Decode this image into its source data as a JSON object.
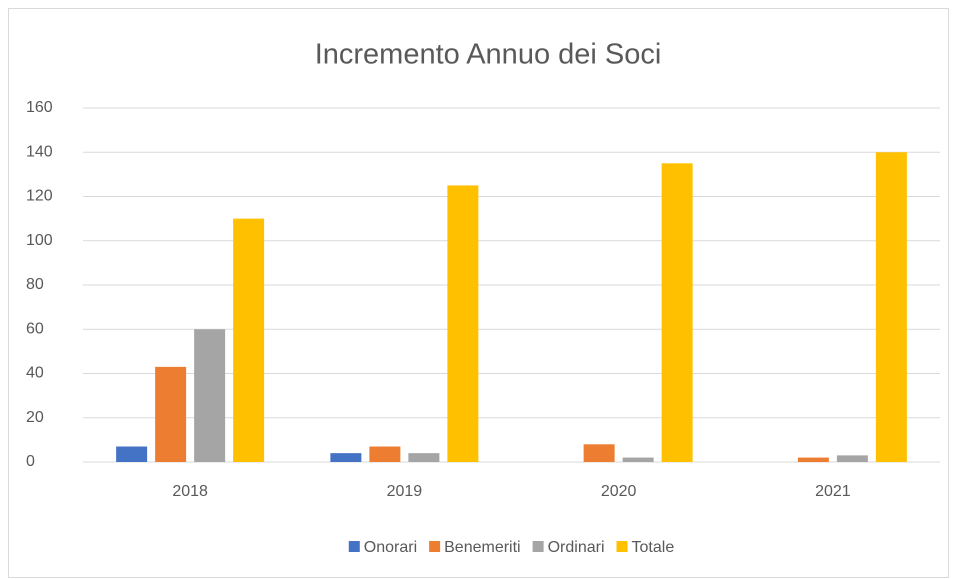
{
  "chart_data": {
    "type": "bar",
    "title": "Incremento Annuo dei Soci",
    "categories": [
      "2018",
      "2019",
      "2020",
      "2021"
    ],
    "series": [
      {
        "name": "Onorari",
        "color": "#4472c4",
        "values": [
          7,
          4,
          0,
          0
        ]
      },
      {
        "name": "Benemeriti",
        "color": "#ed7d31",
        "values": [
          43,
          7,
          8,
          2
        ]
      },
      {
        "name": "Ordinari",
        "color": "#a5a5a5",
        "values": [
          60,
          4,
          2,
          3
        ]
      },
      {
        "name": "Totale",
        "color": "#ffc000",
        "values": [
          110,
          125,
          135,
          140
        ]
      }
    ],
    "ylim": [
      0,
      160
    ],
    "yticks": [
      0,
      20,
      40,
      60,
      80,
      100,
      120,
      140,
      160
    ],
    "grid": true,
    "legend": "bottom"
  }
}
